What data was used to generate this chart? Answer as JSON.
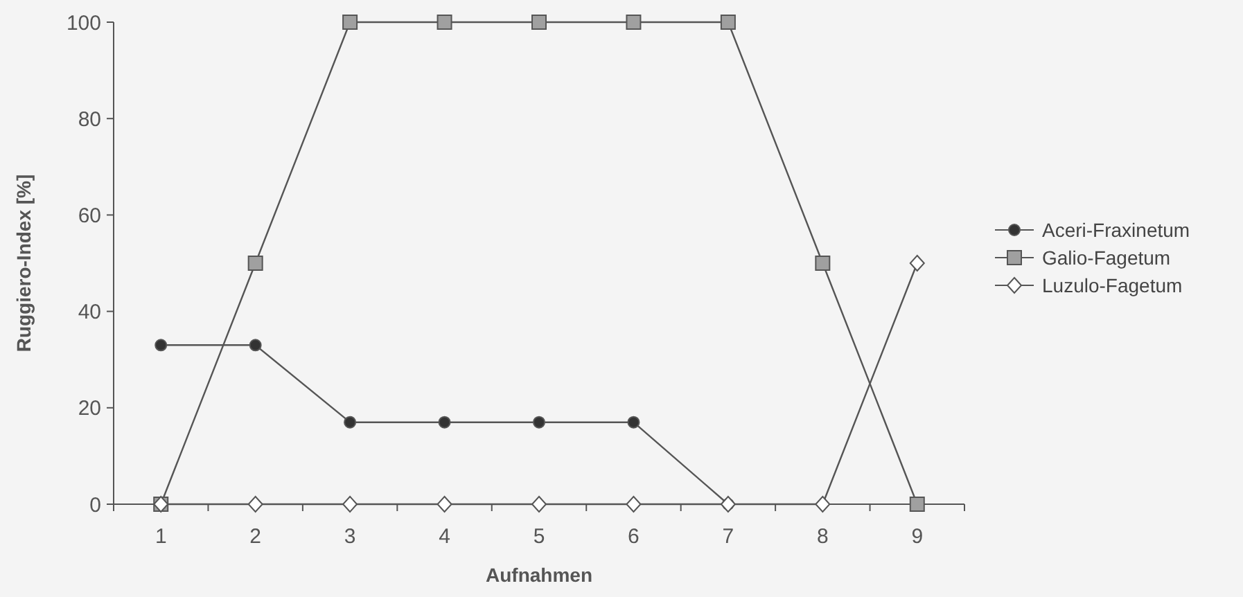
{
  "chart_data": {
    "type": "line",
    "xlabel": "Aufnahmen",
    "ylabel": "Ruggiero-Index [%]",
    "categories": [
      "1",
      "2",
      "3",
      "4",
      "5",
      "6",
      "7",
      "8",
      "9"
    ],
    "series": [
      {
        "name": "Aceri-Fraxinetum",
        "color": "#333333",
        "marker": "circle",
        "values": [
          33,
          33,
          17,
          17,
          17,
          17,
          0,
          null,
          null
        ]
      },
      {
        "name": "Galio-Fagetum",
        "color": "#a0a0a0",
        "marker": "square",
        "values": [
          0,
          50,
          100,
          100,
          100,
          100,
          100,
          50,
          0
        ]
      },
      {
        "name": "Luzulo-Fagetum",
        "color": "#ffffff",
        "marker": "diamond",
        "values": [
          0,
          0,
          0,
          0,
          0,
          0,
          0,
          0,
          50
        ]
      }
    ],
    "ylim": [
      0,
      100
    ],
    "yticks": [
      0,
      20,
      40,
      60,
      80,
      100
    ],
    "grid": false,
    "legend": "right",
    "line_style": "solid"
  }
}
